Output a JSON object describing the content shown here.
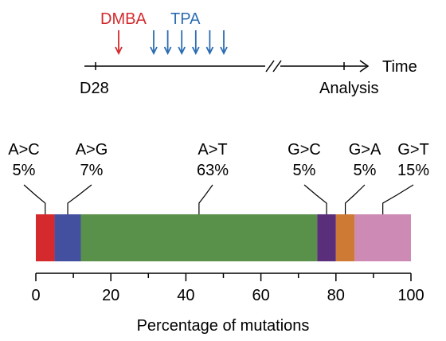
{
  "timeline": {
    "dmba_label": "DMBA",
    "tpa_label": "TPA",
    "start_label": "D28",
    "end_label": "Analysis",
    "axis_label": "Time",
    "dmba_color": "#d42a2e",
    "tpa_color": "#2b6cb3",
    "tpa_arrow_count": 6
  },
  "chart_data": {
    "type": "bar",
    "orientation": "horizontal-stacked",
    "xlabel": "Percentage of mutations",
    "xlim": [
      0,
      100
    ],
    "xticks": [
      "0",
      "20",
      "40",
      "60",
      "80",
      "100"
    ],
    "categories": [
      "A>C",
      "A>G",
      "A>T",
      "G>C",
      "G>A",
      "G>T"
    ],
    "value_labels": [
      "5%",
      "7%",
      "63%",
      "5%",
      "5%",
      "15%"
    ],
    "values": [
      5,
      7,
      63,
      5,
      5,
      15
    ],
    "colors": [
      "#d42a2e",
      "#4350a0",
      "#59914b",
      "#5a2e7a",
      "#cf7a34",
      "#cc8ab5"
    ]
  }
}
